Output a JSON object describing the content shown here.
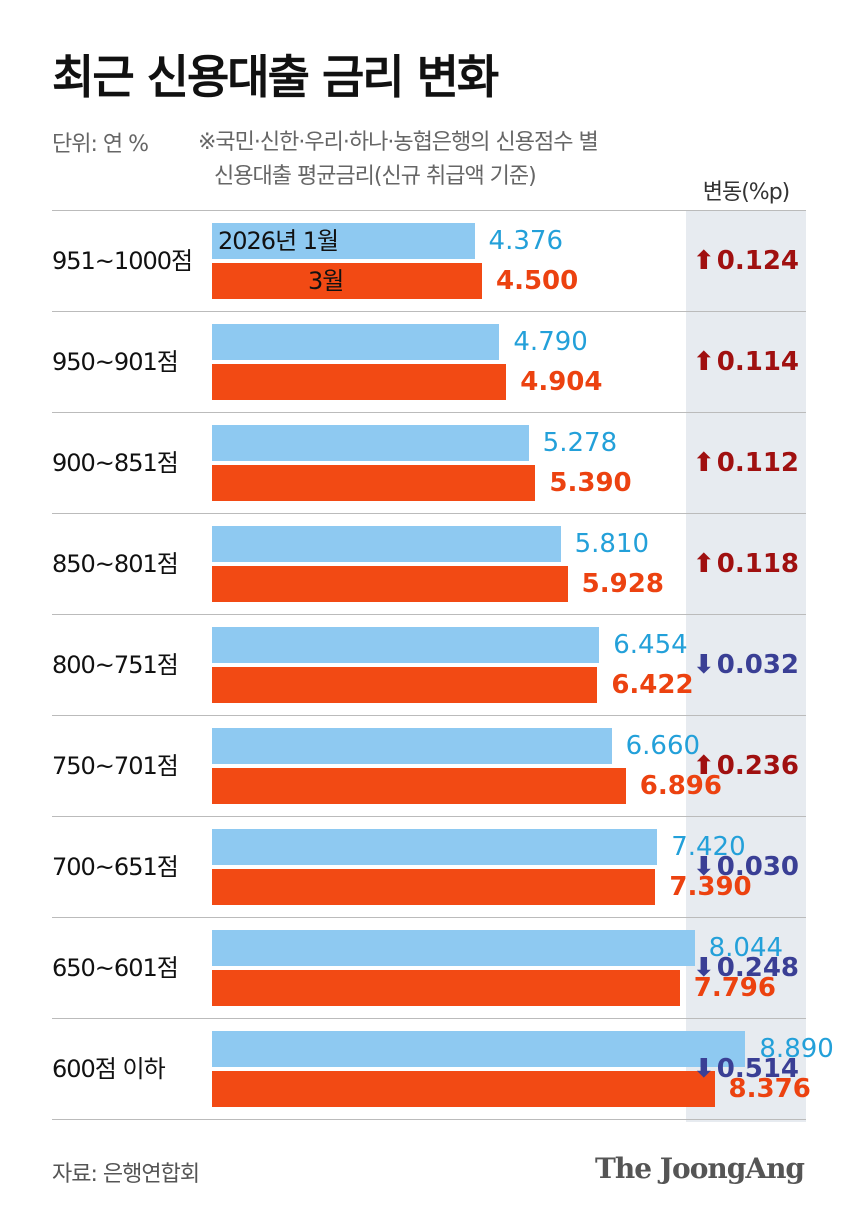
{
  "title": "최근 신용대출 금리 변화",
  "unit_label": "단위: 연 %",
  "note_line1": "※국민·신한·우리·하나·농협은행의 신용점수 별",
  "note_line2": "신용대출 평균금리(신규 취급액 기준)",
  "change_header": "변동(%p)",
  "source": "자료: 은행연합회",
  "logo": "The JoongAng",
  "colors": {
    "jan_bar": "#8ec9f1",
    "jan_text": "#23a0d9",
    "mar_bar": "#f24a14",
    "mar_text": "#ec4210",
    "up": "#a01010",
    "down": "#3a3f95"
  },
  "chart_data": {
    "type": "bar",
    "orientation": "horizontal",
    "title": "최근 신용대출 금리 변화",
    "xlim": [
      0,
      9.5
    ],
    "categories": [
      "951~1000점",
      "950~901점",
      "900~851점",
      "850~801점",
      "800~751점",
      "750~701점",
      "700~651점",
      "650~601점",
      "600점 이하"
    ],
    "series": [
      {
        "name": "2026년 1월",
        "values": [
          4.376,
          4.79,
          5.278,
          5.81,
          6.454,
          6.66,
          7.42,
          8.044,
          8.89
        ],
        "labels": [
          "4.376",
          "4.790",
          "5.278",
          "5.810",
          "6.454",
          "6.660",
          "7.420",
          "8.044",
          "8.890"
        ]
      },
      {
        "name": "3월",
        "values": [
          4.5,
          4.904,
          5.39,
          5.928,
          6.422,
          6.896,
          7.39,
          7.796,
          8.376
        ],
        "labels": [
          "4.500",
          "4.904",
          "5.390",
          "5.928",
          "6.422",
          "6.896",
          "7.390",
          "7.796",
          "8.376"
        ]
      }
    ],
    "change": {
      "values": [
        "0.124",
        "0.114",
        "0.112",
        "0.118",
        "0.032",
        "0.236",
        "0.030",
        "0.248",
        "0.514"
      ],
      "direction": [
        "up",
        "up",
        "up",
        "up",
        "down",
        "up",
        "down",
        "down",
        "down"
      ]
    }
  }
}
